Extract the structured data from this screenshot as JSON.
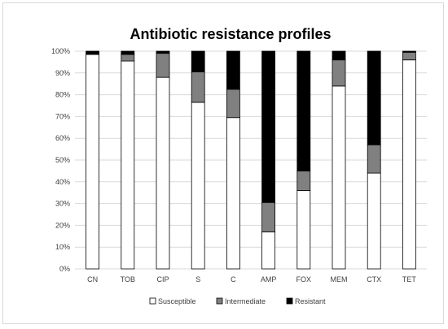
{
  "chart_data": {
    "type": "bar",
    "stacked": true,
    "title": "Antibiotic resistance profiles",
    "xlabel": "",
    "ylabel": "",
    "categories": [
      "CN",
      "TOB",
      "CIP",
      "S",
      "C",
      "AMP",
      "FOX",
      "MEM",
      "CTX",
      "TET"
    ],
    "ylim": [
      0,
      100
    ],
    "yticks": [
      "0%",
      "10%",
      "20%",
      "30%",
      "40%",
      "50%",
      "60%",
      "70%",
      "80%",
      "90%",
      "100%"
    ],
    "grid": true,
    "legend_position": "bottom",
    "series": [
      {
        "name": "Susceptible",
        "color": "#ffffff",
        "values": [
          98.5,
          95.5,
          88,
          76.5,
          69.5,
          17,
          36,
          84,
          44,
          96
        ]
      },
      {
        "name": "Intermediate",
        "color": "#808080",
        "values": [
          0,
          3,
          11,
          14,
          13,
          13.5,
          9,
          12,
          13,
          3.5
        ]
      },
      {
        "name": "Resistant",
        "color": "#000000",
        "values": [
          1.5,
          1.5,
          1,
          9.5,
          17.5,
          69.5,
          55,
          4,
          43,
          0.5
        ]
      }
    ]
  }
}
